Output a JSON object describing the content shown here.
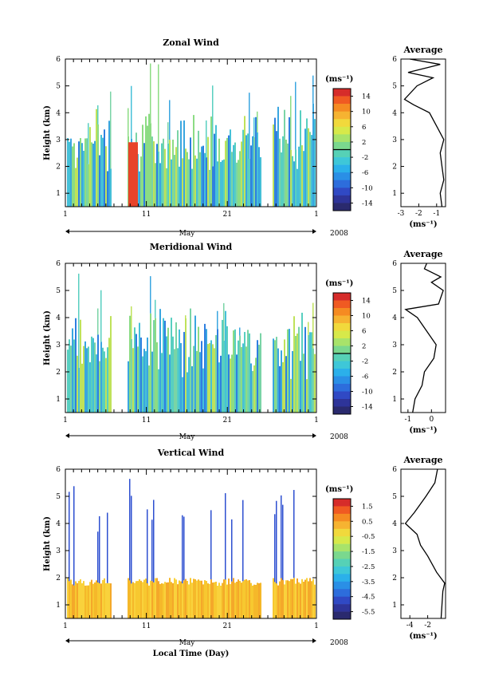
{
  "chart_data": [
    {
      "type": "heatmap",
      "title": "Zonal Wind",
      "ylabel": "Height (km)",
      "yticks": [
        "1",
        "2",
        "3",
        "4",
        "5",
        "6"
      ],
      "ylim": [
        0.5,
        6
      ],
      "xticks": [
        "1",
        "11",
        "21",
        "1"
      ],
      "month_label": "May",
      "year_label": "2008",
      "colorbar": {
        "unit": "(ms⁻¹)",
        "labels": [
          "14",
          "10",
          "6",
          "2",
          "-2",
          "-6",
          "-10",
          "-14"
        ],
        "range": [
          -16,
          16
        ],
        "marker": 0
      },
      "profile": {
        "title": "Average",
        "xlabel": "(ms⁻¹)",
        "xticks": [
          "-3",
          "-2",
          "-1"
        ],
        "xlim": [
          -3.0,
          -0.5
        ],
        "heights": [
          0.5,
          1,
          1.5,
          2,
          2.5,
          3,
          3.5,
          4,
          4.3,
          4.5,
          5,
          5.3,
          5.5,
          5.8,
          6
        ],
        "values": [
          -0.7,
          -0.8,
          -0.6,
          -0.7,
          -0.8,
          -0.6,
          -1.0,
          -1.4,
          -2.3,
          -2.8,
          -2.1,
          -1.2,
          -2.6,
          -0.8,
          -2.5
        ]
      }
    },
    {
      "type": "heatmap",
      "title": "Meridional Wind",
      "ylabel": "Height (km)",
      "yticks": [
        "1",
        "2",
        "3",
        "4",
        "5",
        "6"
      ],
      "ylim": [
        0.5,
        6
      ],
      "xticks": [
        "1",
        "11",
        "21",
        "1"
      ],
      "month_label": "May",
      "year_label": "2008",
      "colorbar": {
        "unit": "(ms⁻¹)",
        "labels": [
          "14",
          "10",
          "6",
          "2",
          "-2",
          "-6",
          "-10",
          "-14"
        ],
        "range": [
          -16,
          16
        ],
        "marker": 0
      },
      "profile": {
        "title": "Average",
        "xlabel": "(ms⁻¹)",
        "xticks": [
          "-1",
          "0"
        ],
        "xlim": [
          -1.3,
          0.6
        ],
        "heights": [
          0.5,
          1,
          1.5,
          2,
          2.5,
          3,
          3.5,
          4,
          4.3,
          4.5,
          5,
          5.3,
          5.5,
          5.8,
          6
        ],
        "values": [
          -0.8,
          -0.7,
          -0.4,
          -0.3,
          0.1,
          0.2,
          -0.2,
          -0.6,
          -1.1,
          0.3,
          0.5,
          0.0,
          0.4,
          -0.3,
          -0.2
        ]
      }
    },
    {
      "type": "heatmap",
      "title": "Vertical Wind",
      "ylabel": "Height (km)",
      "yticks": [
        "1",
        "2",
        "3",
        "4",
        "5",
        "6"
      ],
      "ylim": [
        0.5,
        6
      ],
      "xticks": [
        "1",
        "11",
        "21",
        "1"
      ],
      "month_label": "May",
      "year_label": "2008",
      "xlabel": "Local Time (Day)",
      "colorbar": {
        "unit": "(ms⁻¹)",
        "labels": [
          "1.5",
          "0.5",
          "-0.5",
          "-1.5",
          "-2.5",
          "-3.5",
          "-4.5",
          "-5.5"
        ],
        "range": [
          -6,
          2
        ]
      },
      "profile": {
        "title": "Average",
        "xlabel": "(ms⁻¹)",
        "xticks": [
          "-4",
          "-2"
        ],
        "xlim": [
          -5,
          0
        ],
        "heights": [
          0.5,
          1,
          1.5,
          1.8,
          2.2,
          2.8,
          3.2,
          3.6,
          4,
          4.4,
          5,
          5.5,
          6
        ],
        "values": [
          -0.5,
          -0.4,
          -0.3,
          -0.1,
          -1.0,
          -2.0,
          -2.8,
          -3.2,
          -4.5,
          -3.5,
          -2.2,
          -1.2,
          -0.9
        ]
      }
    }
  ]
}
